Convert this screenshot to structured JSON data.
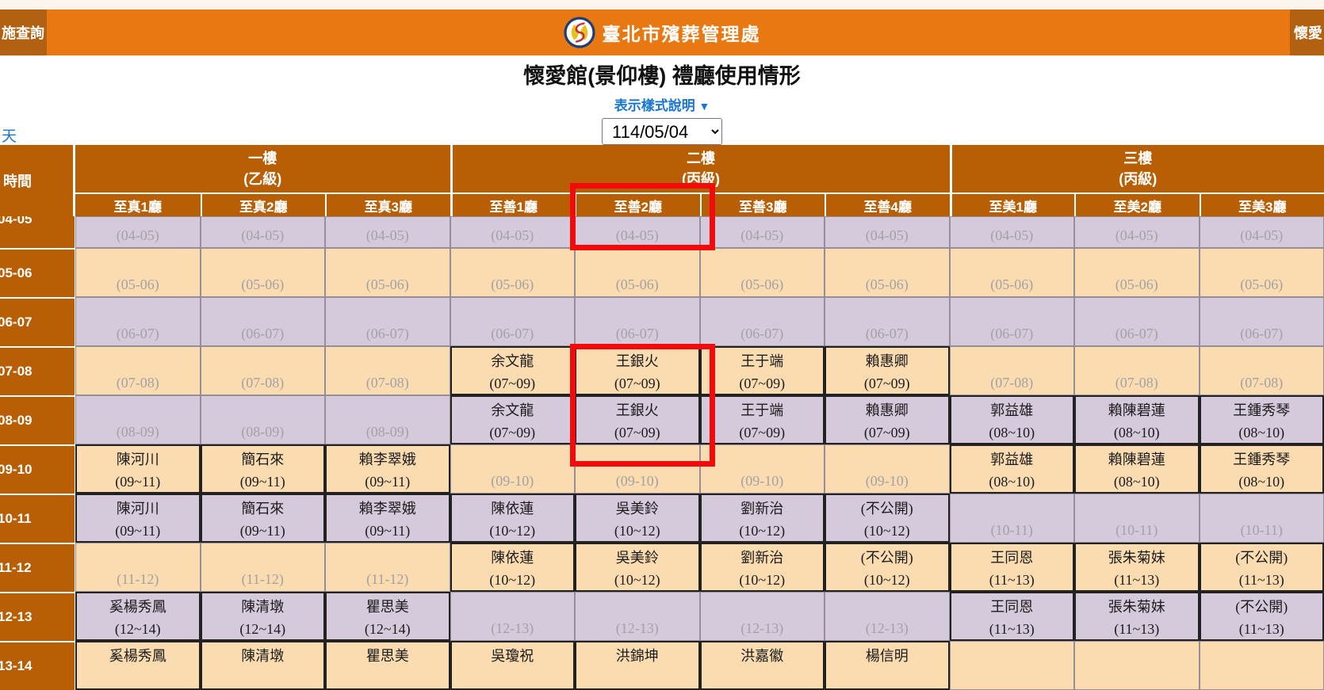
{
  "colors": {
    "topbar_orange": "#E87812",
    "menu_dark_orange": "#B26011",
    "table_header_orange": "#B85E04",
    "row_purple": "#D5CADC",
    "row_peach": "#FBDCB1",
    "highlight_red": "#F30B0B",
    "link_blue": "#1976D2",
    "placeholder_gray": "#A3A1A4"
  },
  "topbar": {
    "left_item": "施查詢",
    "brand": "臺北市殯葬管理處",
    "right_item": "懷愛",
    "logo_icon": "swan-circle-logo"
  },
  "page": {
    "title": "懷愛館(景仰樓) 禮廳使用情形",
    "style_hint": "表示樣式說明",
    "style_hint_arrow": "▼",
    "prev_day_fragment": "天",
    "date_selected": "114/05/04"
  },
  "table": {
    "time_header": "時間",
    "floors": [
      {
        "name": "一樓",
        "grade": "(乙級)",
        "halls": [
          "至真1廳",
          "至真2廳",
          "至真3廳"
        ]
      },
      {
        "name": "二樓",
        "grade": "(丙級)",
        "halls": [
          "至善1廳",
          "至善2廳",
          "至善3廳",
          "至善4廳"
        ]
      },
      {
        "name": "三樓",
        "grade": "(丙級)",
        "halls": [
          "至美1廳",
          "至美2廳",
          "至美3廳"
        ]
      }
    ],
    "highlighted_column": "至善2廳",
    "rows": [
      {
        "time": "04-05",
        "partial": true,
        "cells": [
          {
            "name": "",
            "time": "(04-05)",
            "booked": false
          },
          {
            "name": "",
            "time": "(04-05)",
            "booked": false
          },
          {
            "name": "",
            "time": "(04-05)",
            "booked": false
          },
          {
            "name": "",
            "time": "(04-05)",
            "booked": false
          },
          {
            "name": "",
            "time": "(04-05)",
            "booked": false
          },
          {
            "name": "",
            "time": "(04-05)",
            "booked": false
          },
          {
            "name": "",
            "time": "(04-05)",
            "booked": false
          },
          {
            "name": "",
            "time": "(04-05)",
            "booked": false
          },
          {
            "name": "",
            "time": "(04-05)",
            "booked": false
          },
          {
            "name": "",
            "time": "(04-05)",
            "booked": false
          }
        ]
      },
      {
        "time": "05-06",
        "partial": false,
        "cells": [
          {
            "name": "",
            "time": "(05-06)",
            "booked": false
          },
          {
            "name": "",
            "time": "(05-06)",
            "booked": false
          },
          {
            "name": "",
            "time": "(05-06)",
            "booked": false
          },
          {
            "name": "",
            "time": "(05-06)",
            "booked": false
          },
          {
            "name": "",
            "time": "(05-06)",
            "booked": false
          },
          {
            "name": "",
            "time": "(05-06)",
            "booked": false
          },
          {
            "name": "",
            "time": "(05-06)",
            "booked": false
          },
          {
            "name": "",
            "time": "(05-06)",
            "booked": false
          },
          {
            "name": "",
            "time": "(05-06)",
            "booked": false
          },
          {
            "name": "",
            "time": "(05-06)",
            "booked": false
          }
        ]
      },
      {
        "time": "06-07",
        "partial": false,
        "cells": [
          {
            "name": "",
            "time": "(06-07)",
            "booked": false
          },
          {
            "name": "",
            "time": "(06-07)",
            "booked": false
          },
          {
            "name": "",
            "time": "(06-07)",
            "booked": false
          },
          {
            "name": "",
            "time": "(06-07)",
            "booked": false
          },
          {
            "name": "",
            "time": "(06-07)",
            "booked": false
          },
          {
            "name": "",
            "time": "(06-07)",
            "booked": false
          },
          {
            "name": "",
            "time": "(06-07)",
            "booked": false
          },
          {
            "name": "",
            "time": "(06-07)",
            "booked": false
          },
          {
            "name": "",
            "time": "(06-07)",
            "booked": false
          },
          {
            "name": "",
            "time": "(06-07)",
            "booked": false
          }
        ]
      },
      {
        "time": "07-08",
        "partial": false,
        "cells": [
          {
            "name": "",
            "time": "(07-08)",
            "booked": false
          },
          {
            "name": "",
            "time": "(07-08)",
            "booked": false
          },
          {
            "name": "",
            "time": "(07-08)",
            "booked": false
          },
          {
            "name": "余文龍",
            "time": "(07~09)",
            "booked": true
          },
          {
            "name": "王銀火",
            "time": "(07~09)",
            "booked": true
          },
          {
            "name": "王于端",
            "time": "(07~09)",
            "booked": true
          },
          {
            "name": "賴惠卿",
            "time": "(07~09)",
            "booked": true
          },
          {
            "name": "",
            "time": "(07-08)",
            "booked": false
          },
          {
            "name": "",
            "time": "(07-08)",
            "booked": false
          },
          {
            "name": "",
            "time": "(07-08)",
            "booked": false
          }
        ]
      },
      {
        "time": "08-09",
        "partial": false,
        "cells": [
          {
            "name": "",
            "time": "(08-09)",
            "booked": false
          },
          {
            "name": "",
            "time": "(08-09)",
            "booked": false
          },
          {
            "name": "",
            "time": "(08-09)",
            "booked": false
          },
          {
            "name": "余文龍",
            "time": "(07~09)",
            "booked": true
          },
          {
            "name": "王銀火",
            "time": "(07~09)",
            "booked": true
          },
          {
            "name": "王于端",
            "time": "(07~09)",
            "booked": true
          },
          {
            "name": "賴惠卿",
            "time": "(07~09)",
            "booked": true
          },
          {
            "name": "郭益雄",
            "time": "(08~10)",
            "booked": true
          },
          {
            "name": "賴陳碧蓮",
            "time": "(08~10)",
            "booked": true
          },
          {
            "name": "王鍾秀琴",
            "time": "(08~10)",
            "booked": true
          }
        ]
      },
      {
        "time": "09-10",
        "partial": false,
        "cells": [
          {
            "name": "陳河川",
            "time": "(09~11)",
            "booked": true
          },
          {
            "name": "簡石來",
            "time": "(09~11)",
            "booked": true
          },
          {
            "name": "賴李翠娥",
            "time": "(09~11)",
            "booked": true
          },
          {
            "name": "",
            "time": "(09-10)",
            "booked": false
          },
          {
            "name": "",
            "time": "(09-10)",
            "booked": false
          },
          {
            "name": "",
            "time": "(09-10)",
            "booked": false
          },
          {
            "name": "",
            "time": "(09-10)",
            "booked": false
          },
          {
            "name": "郭益雄",
            "time": "(08~10)",
            "booked": true
          },
          {
            "name": "賴陳碧蓮",
            "time": "(08~10)",
            "booked": true
          },
          {
            "name": "王鍾秀琴",
            "time": "(08~10)",
            "booked": true
          }
        ]
      },
      {
        "time": "10-11",
        "partial": false,
        "cells": [
          {
            "name": "陳河川",
            "time": "(09~11)",
            "booked": true
          },
          {
            "name": "簡石來",
            "time": "(09~11)",
            "booked": true
          },
          {
            "name": "賴李翠娥",
            "time": "(09~11)",
            "booked": true
          },
          {
            "name": "陳依蓮",
            "time": "(10~12)",
            "booked": true
          },
          {
            "name": "吳美鈴",
            "time": "(10~12)",
            "booked": true
          },
          {
            "name": "劉新治",
            "time": "(10~12)",
            "booked": true
          },
          {
            "name": "(不公開)",
            "time": "(10~12)",
            "booked": true
          },
          {
            "name": "",
            "time": "(10-11)",
            "booked": false
          },
          {
            "name": "",
            "time": "(10-11)",
            "booked": false
          },
          {
            "name": "",
            "time": "(10-11)",
            "booked": false
          }
        ]
      },
      {
        "time": "11-12",
        "partial": false,
        "cells": [
          {
            "name": "",
            "time": "(11-12)",
            "booked": false
          },
          {
            "name": "",
            "time": "(11-12)",
            "booked": false
          },
          {
            "name": "",
            "time": "(11-12)",
            "booked": false
          },
          {
            "name": "陳依蓮",
            "time": "(10~12)",
            "booked": true
          },
          {
            "name": "吳美鈴",
            "time": "(10~12)",
            "booked": true
          },
          {
            "name": "劉新治",
            "time": "(10~12)",
            "booked": true
          },
          {
            "name": "(不公開)",
            "time": "(10~12)",
            "booked": true
          },
          {
            "name": "王同恩",
            "time": "(11~13)",
            "booked": true
          },
          {
            "name": "張朱菊妹",
            "time": "(11~13)",
            "booked": true
          },
          {
            "name": "(不公開)",
            "time": "(11~13)",
            "booked": true
          }
        ]
      },
      {
        "time": "12-13",
        "partial": false,
        "cells": [
          {
            "name": "奚楊秀鳳",
            "time": "(12~14)",
            "booked": true
          },
          {
            "name": "陳清墩",
            "time": "(12~14)",
            "booked": true
          },
          {
            "name": "瞿思美",
            "time": "(12~14)",
            "booked": true
          },
          {
            "name": "",
            "time": "(12-13)",
            "booked": false
          },
          {
            "name": "",
            "time": "(12-13)",
            "booked": false
          },
          {
            "name": "",
            "time": "(12-13)",
            "booked": false
          },
          {
            "name": "",
            "time": "(12-13)",
            "booked": false
          },
          {
            "name": "王同恩",
            "time": "(11~13)",
            "booked": true
          },
          {
            "name": "張朱菊妹",
            "time": "(11~13)",
            "booked": true
          },
          {
            "name": "(不公開)",
            "time": "(11~13)",
            "booked": true
          }
        ]
      },
      {
        "time": "13-14",
        "partial": false,
        "cells": [
          {
            "name": "奚楊秀鳳",
            "time": "",
            "booked": true
          },
          {
            "name": "陳清墩",
            "time": "",
            "booked": true
          },
          {
            "name": "瞿思美",
            "time": "",
            "booked": true
          },
          {
            "name": "吳瓊祝",
            "time": "",
            "booked": true
          },
          {
            "name": "洪錦坤",
            "time": "",
            "booked": true
          },
          {
            "name": "洪嘉徽",
            "time": "",
            "booked": true
          },
          {
            "name": "楊信明",
            "time": "",
            "booked": true
          },
          {
            "name": "",
            "time": "",
            "booked": false
          },
          {
            "name": "",
            "time": "",
            "booked": false
          },
          {
            "name": "",
            "time": "",
            "booked": false
          }
        ]
      }
    ]
  }
}
